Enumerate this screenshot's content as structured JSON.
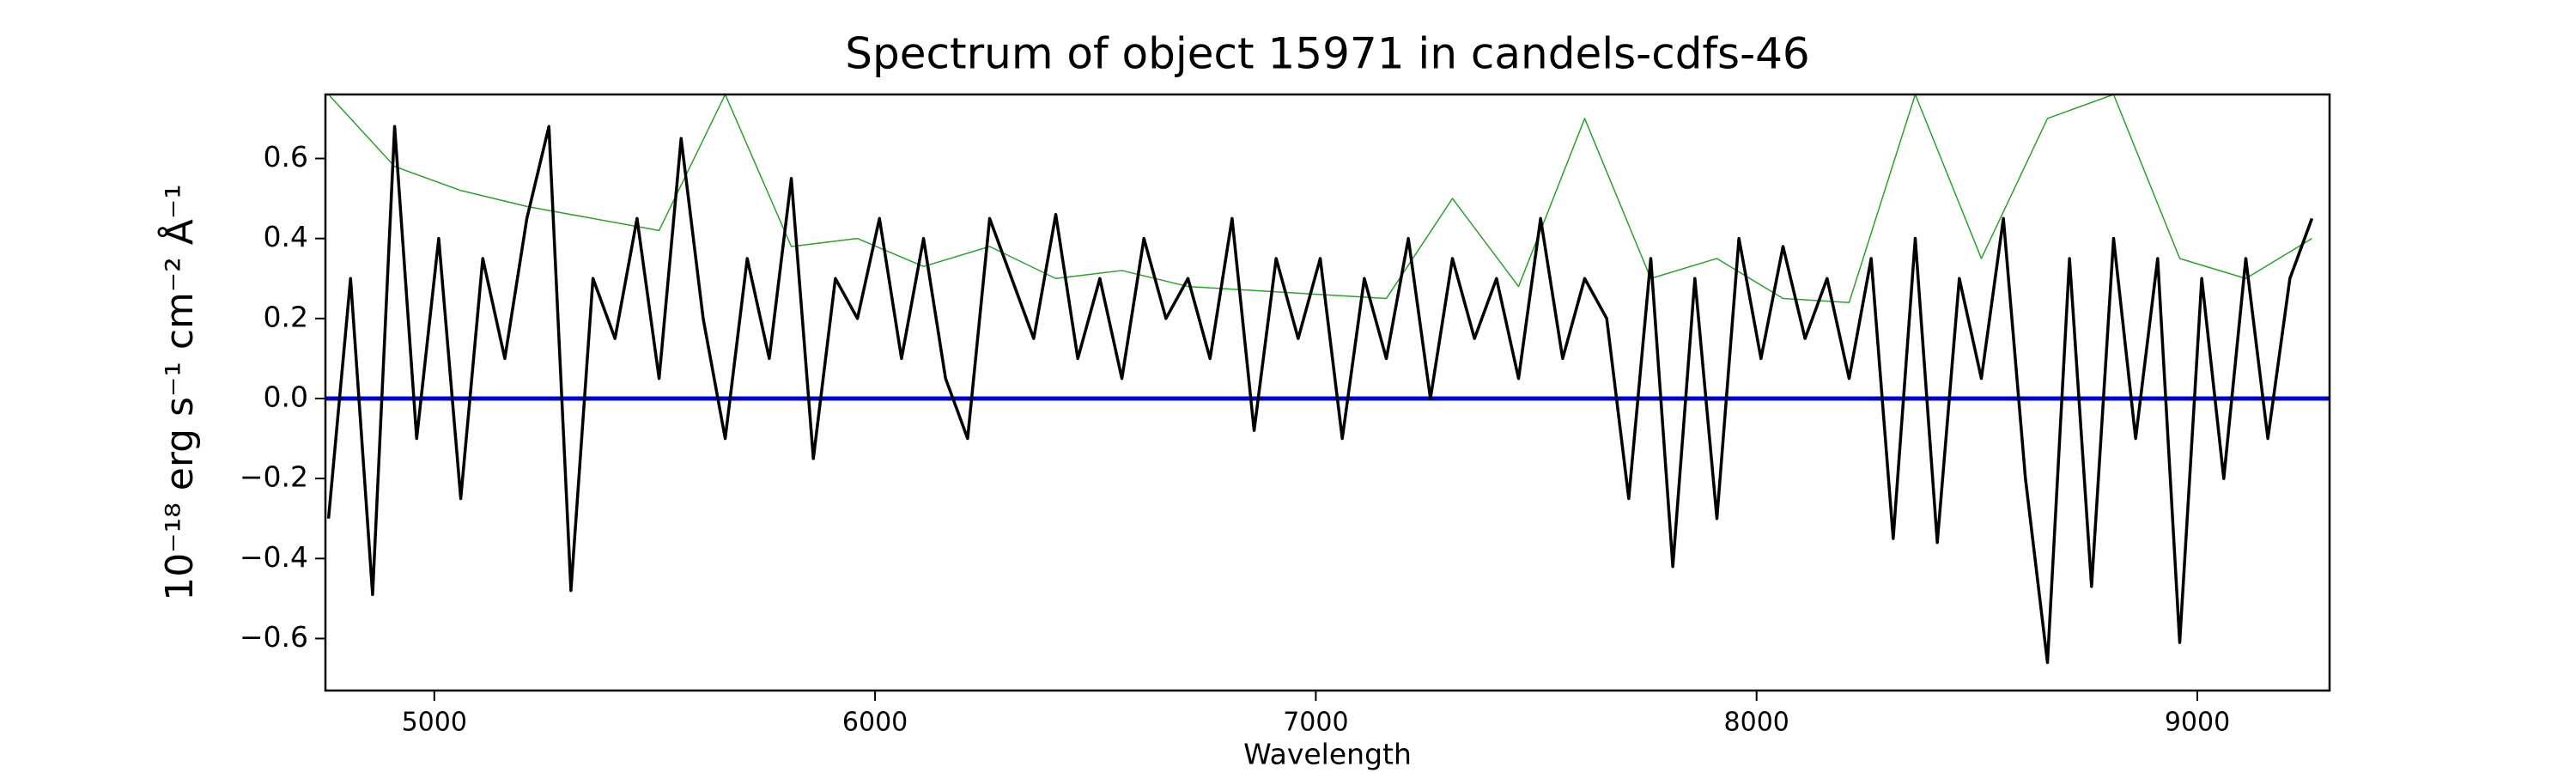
{
  "chart_data": {
    "type": "line",
    "title": "Spectrum of object 15971 in candels-cdfs-46",
    "x_label": "Wavelength",
    "y_label": "10⁻¹⁸ erg s⁻¹ cm⁻² Å⁻¹",
    "xlim": [
      4753,
      9300
    ],
    "ylim": [
      -0.73,
      0.76
    ],
    "xticks": [
      5000,
      6000,
      7000,
      8000,
      9000
    ],
    "yticks": [
      {
        "value": -0.6,
        "label": "−0.6"
      },
      {
        "value": -0.4,
        "label": "−0.4"
      },
      {
        "value": -0.2,
        "label": "−0.2"
      },
      {
        "value": 0,
        "label": "0.0"
      },
      0.2,
      0.4,
      0.6
    ],
    "grid": false,
    "series": [
      {
        "color": "#2ca02c",
        "width": 1.5,
        "x": [
          4760,
          4910,
          5060,
          5210,
          5360,
          5510,
          5660,
          5810,
          5960,
          6110,
          6260,
          6410,
          6560,
          6710,
          6860,
          7010,
          7160,
          7310,
          7460,
          7610,
          7760,
          7910,
          8060,
          8210,
          8360,
          8510,
          8660,
          8810,
          8960,
          9110,
          9260
        ],
        "values": [
          0.76,
          0.58,
          0.52,
          0.48,
          0.45,
          0.42,
          0.76,
          0.38,
          0.4,
          0.33,
          0.38,
          0.3,
          0.32,
          0.28,
          0.27,
          0.26,
          0.25,
          0.5,
          0.28,
          0.7,
          0.3,
          0.35,
          0.25,
          0.24,
          0.76,
          0.35,
          0.7,
          0.76,
          0.35,
          0.3,
          0.4
        ]
      },
      {
        "color": "#0000cc",
        "width": 5,
        "x": [
          4753,
          9300
        ],
        "values": [
          0,
          0
        ]
      },
      {
        "color": "#000000",
        "width": 3.5,
        "x": [
          4760,
          4810,
          4860,
          4910,
          4960,
          5010,
          5060,
          5110,
          5160,
          5210,
          5260,
          5310,
          5360,
          5410,
          5460,
          5510,
          5560,
          5610,
          5660,
          5710,
          5760,
          5810,
          5860,
          5910,
          5960,
          6010,
          6060,
          6110,
          6160,
          6210,
          6260,
          6310,
          6360,
          6410,
          6460,
          6510,
          6560,
          6610,
          6660,
          6710,
          6760,
          6810,
          6860,
          6910,
          6960,
          7010,
          7060,
          7110,
          7160,
          7210,
          7260,
          7310,
          7360,
          7410,
          7460,
          7510,
          7560,
          7610,
          7660,
          7710,
          7760,
          7810,
          7860,
          7910,
          7960,
          8010,
          8060,
          8110,
          8160,
          8210,
          8260,
          8310,
          8360,
          8410,
          8460,
          8510,
          8560,
          8610,
          8660,
          8710,
          8760,
          8810,
          8860,
          8910,
          8960,
          9010,
          9060,
          9110,
          9160,
          9210,
          9260
        ],
        "values": [
          -0.3,
          0.3,
          -0.49,
          0.68,
          -0.1,
          0.4,
          -0.25,
          0.35,
          0.1,
          0.45,
          0.68,
          -0.48,
          0.3,
          0.15,
          0.45,
          0.05,
          0.65,
          0.2,
          -0.1,
          0.35,
          0.1,
          0.55,
          -0.15,
          0.3,
          0.2,
          0.45,
          0.1,
          0.4,
          0.05,
          -0.1,
          0.45,
          0.3,
          0.15,
          0.46,
          0.1,
          0.3,
          0.05,
          0.4,
          0.2,
          0.3,
          0.1,
          0.45,
          -0.08,
          0.35,
          0.15,
          0.35,
          -0.1,
          0.3,
          0.1,
          0.4,
          0.0,
          0.35,
          0.15,
          0.3,
          0.05,
          0.45,
          0.1,
          0.3,
          0.2,
          -0.25,
          0.35,
          -0.42,
          0.3,
          -0.3,
          0.4,
          0.1,
          0.38,
          0.15,
          0.3,
          0.05,
          0.35,
          -0.35,
          0.4,
          -0.36,
          0.3,
          0.05,
          0.45,
          -0.2,
          -0.66,
          0.35,
          -0.47,
          0.4,
          -0.1,
          0.35,
          -0.61,
          0.3,
          -0.2,
          0.35,
          -0.1,
          0.3,
          0.45
        ]
      }
    ]
  }
}
